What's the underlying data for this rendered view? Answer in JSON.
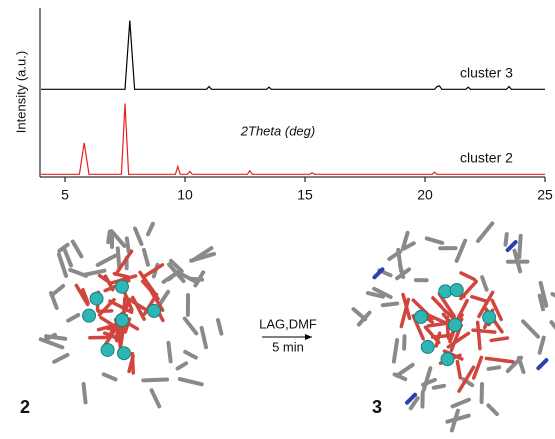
{
  "chart_data": [
    {
      "type": "line",
      "ylabel": "Intensity (a.u.)",
      "xlim": [
        4,
        25
      ],
      "ylim": [
        0,
        105
      ],
      "series": [
        {
          "name": "cluster 3",
          "color": "#000000",
          "x": [
            4,
            7.5,
            7.7,
            7.9,
            10.9,
            11.0,
            11.1,
            13.4,
            13.5,
            13.6,
            20.4,
            20.5,
            20.6,
            20.7,
            21.7,
            21.8,
            21.9,
            23.4,
            23.5,
            23.6,
            25
          ],
          "values": [
            1,
            1,
            100,
            1,
            1,
            5,
            1,
            1,
            4,
            1,
            1,
            5,
            6,
            1,
            1,
            4,
            1,
            1,
            5,
            1,
            1
          ]
        }
      ]
    },
    {
      "type": "line",
      "xlabel": "2Theta (deg)",
      "xlim": [
        4,
        25
      ],
      "ylim": [
        0,
        105
      ],
      "xticks": [
        5,
        10,
        15,
        20,
        25
      ],
      "series": [
        {
          "name": "cluster 2",
          "color": "#e8201c",
          "x": [
            4,
            5.6,
            5.8,
            6.0,
            7.35,
            7.5,
            7.65,
            9.6,
            9.7,
            9.8,
            10.1,
            10.2,
            10.3,
            12.6,
            12.7,
            12.8,
            15.2,
            15.3,
            15.4,
            20.3,
            20.4,
            20.5,
            25
          ],
          "values": [
            1,
            1,
            45,
            1,
            1,
            100,
            1,
            1,
            12,
            1,
            1,
            5,
            1,
            1,
            6,
            1,
            1,
            3,
            1,
            1,
            4,
            1,
            1
          ]
        }
      ]
    }
  ],
  "scheme": {
    "left_label": "2",
    "right_label": "3",
    "arrow_top": "LAG,DMF",
    "arrow_bottom": "5 min"
  }
}
